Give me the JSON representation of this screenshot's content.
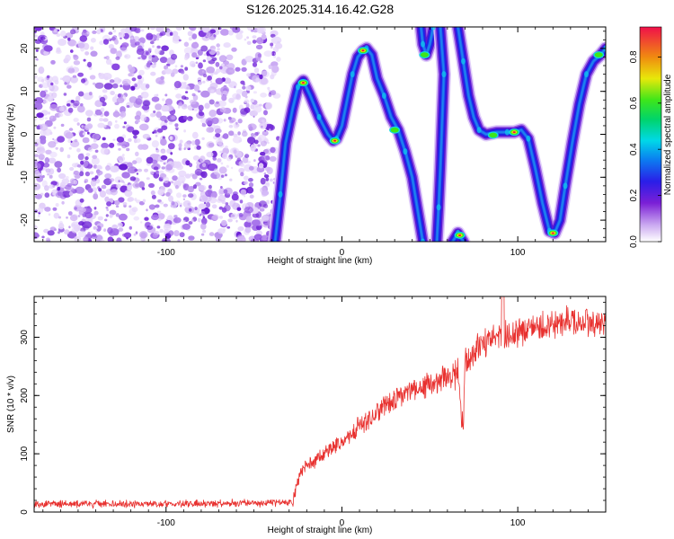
{
  "figure_title": "S126.2025.314.16.42.G28",
  "colors": {
    "snr_line": "#e8312f",
    "axis": "#000000",
    "background": "#ffffff"
  },
  "chart_data": [
    {
      "type": "heatmap",
      "title": "S126.2025.314.16.42.G28",
      "xlabel": "Height of straight line (km)",
      "ylabel": "Frequency (Hz)",
      "xlim": [
        -175,
        150
      ],
      "ylim": [
        -25,
        25
      ],
      "x_ticks": [
        -100,
        0,
        100
      ],
      "y_ticks": [
        -20,
        -10,
        0,
        10,
        20
      ],
      "noise_region_x": [
        -175,
        -38
      ],
      "colorbar": {
        "label": "Normalized spectral amplitude",
        "range": [
          0,
          0.93
        ],
        "ticks": [
          0.0,
          0.2,
          0.4,
          0.6,
          0.8
        ]
      },
      "ridges": [
        {
          "name": "main-ridge",
          "points": [
            [
              -38,
              -25
            ],
            [
              -35,
              -14
            ],
            [
              -32,
              -2
            ],
            [
              -28,
              6
            ],
            [
              -25,
              11
            ],
            [
              -22,
              12.5
            ],
            [
              -18,
              9
            ],
            [
              -13,
              4
            ],
            [
              -8,
              0
            ],
            [
              -5,
              -1.5
            ],
            [
              -3,
              -1
            ],
            [
              0,
              2
            ],
            [
              3,
              8
            ],
            [
              6,
              14
            ],
            [
              9,
              18
            ],
            [
              12,
              19.5
            ],
            [
              14,
              20
            ],
            [
              17,
              18.5
            ],
            [
              20,
              13
            ],
            [
              24,
              9
            ],
            [
              28,
              4
            ],
            [
              32,
              1
            ],
            [
              36,
              -4
            ],
            [
              40,
              -10
            ],
            [
              44,
              -20
            ],
            [
              46,
              -25
            ]
          ]
        },
        {
          "name": "top-blob",
          "points": [
            [
              45,
              25
            ],
            [
              46,
              21
            ],
            [
              48,
              18.5
            ],
            [
              50,
              21
            ],
            [
              52,
              25
            ]
          ]
        },
        {
          "name": "vertical-ridge",
          "points": [
            [
              56,
              25
            ],
            [
              58,
              14
            ],
            [
              57,
              3
            ],
            [
              56,
              -8
            ],
            [
              55,
              -17
            ],
            [
              54,
              -25
            ]
          ]
        },
        {
          "name": "right-ridge",
          "points": [
            [
              66,
              25
            ],
            [
              69,
              17
            ],
            [
              72,
              9
            ],
            [
              75,
              4
            ],
            [
              78,
              1
            ],
            [
              82,
              0
            ],
            [
              88,
              0.5
            ],
            [
              94,
              0.5
            ],
            [
              98,
              0.5
            ],
            [
              102,
              1
            ],
            [
              106,
              -1
            ],
            [
              110,
              -8
            ],
            [
              114,
              -16
            ],
            [
              118,
              -22.5
            ],
            [
              121,
              -23
            ],
            [
              124,
              -20
            ],
            [
              127,
              -12
            ],
            [
              131,
              -2
            ],
            [
              135,
              7
            ],
            [
              139,
              14
            ],
            [
              143,
              17
            ],
            [
              147,
              18.5
            ],
            [
              150,
              20
            ]
          ]
        },
        {
          "name": "bottom-blob",
          "points": [
            [
              63,
              -25
            ],
            [
              66,
              -23
            ],
            [
              69,
              -25
            ]
          ]
        }
      ],
      "hotspots": [
        {
          "x": -22,
          "y": 12,
          "amp": 0.85
        },
        {
          "x": -4,
          "y": -1.5,
          "amp": 0.9
        },
        {
          "x": 12,
          "y": 19.5,
          "amp": 0.9
        },
        {
          "x": 47,
          "y": 18.5,
          "amp": 0.6
        },
        {
          "x": 67,
          "y": -23.5,
          "amp": 0.9
        },
        {
          "x": 86,
          "y": -0.2,
          "amp": 0.6
        },
        {
          "x": 98,
          "y": 0.5,
          "amp": 0.8
        },
        {
          "x": 120,
          "y": -23,
          "amp": 0.9
        },
        {
          "x": 146,
          "y": 18.5,
          "amp": 0.6
        },
        {
          "x": 30,
          "y": 1,
          "amp": 0.45
        }
      ]
    },
    {
      "type": "line",
      "xlabel": "Height of straight line (km)",
      "ylabel": "SNR (10 * v/v)",
      "xlim": [
        -175,
        150
      ],
      "ylim": [
        0,
        370
      ],
      "x_ticks": [
        -100,
        0,
        100
      ],
      "y_ticks": [
        0,
        100,
        200,
        300
      ],
      "series": [
        {
          "name": "SNR",
          "envelope": [
            [
              -175,
              14
            ],
            [
              -150,
              14
            ],
            [
              -100,
              14
            ],
            [
              -60,
              15
            ],
            [
              -40,
              16
            ],
            [
              -28,
              18
            ],
            [
              -26,
              40
            ],
            [
              -24,
              65
            ],
            [
              -20,
              78
            ],
            [
              -10,
              100
            ],
            [
              0,
              122
            ],
            [
              10,
              148
            ],
            [
              20,
              172
            ],
            [
              30,
              195
            ],
            [
              40,
              210
            ],
            [
              50,
              222
            ],
            [
              60,
              232
            ],
            [
              66,
              236
            ],
            [
              67,
              220
            ],
            [
              68,
              160
            ],
            [
              69,
              150
            ],
            [
              70,
              255
            ],
            [
              75,
              275
            ],
            [
              80,
              288
            ],
            [
              90,
              300
            ],
            [
              100,
              310
            ],
            [
              110,
              318
            ],
            [
              120,
              322
            ],
            [
              130,
              326
            ],
            [
              140,
              325
            ],
            [
              150,
              322
            ]
          ],
          "spike": {
            "x": 92,
            "y": 370
          }
        }
      ]
    }
  ]
}
